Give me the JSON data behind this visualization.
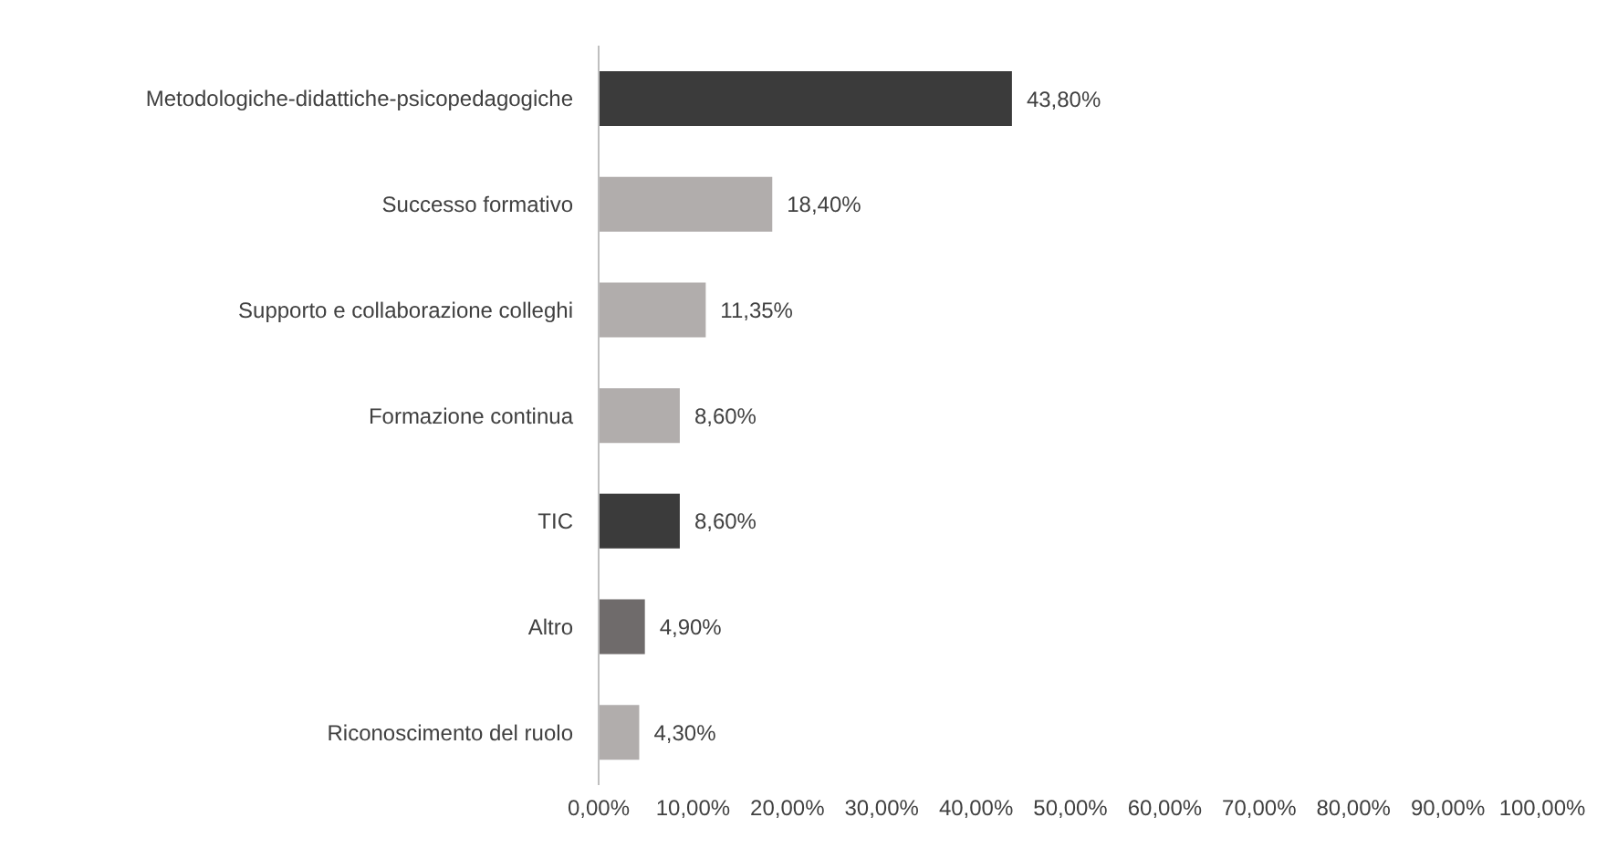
{
  "chart_data": {
    "type": "bar",
    "orientation": "horizontal",
    "categories": [
      "Metodologiche-didattiche-psicopedagogiche",
      "Successo formativo",
      "Supporto e collaborazione colleghi",
      "Formazione continua",
      "TIC",
      "Altro",
      "Riconoscimento del ruolo"
    ],
    "values": [
      43.8,
      18.4,
      11.35,
      8.6,
      8.6,
      4.9,
      4.3
    ],
    "colors": [
      "#3b3b3b",
      "#b1adac",
      "#b1adac",
      "#b1adac",
      "#3b3b3b",
      "#6f6b6b",
      "#b1adac"
    ],
    "value_labels": [
      "43,80%",
      "18,40%",
      "11,35%",
      "8,60%",
      "8,60%",
      "4,90%",
      "4,30%"
    ],
    "xlim": [
      0,
      100
    ],
    "xticks": [
      {
        "value": 0,
        "label": "0,00%"
      },
      {
        "value": 10,
        "label": "10,00%"
      },
      {
        "value": 20,
        "label": "20,00%"
      },
      {
        "value": 30,
        "label": "30,00%"
      },
      {
        "value": 40,
        "label": "40,00%"
      },
      {
        "value": 50,
        "label": "50,00%"
      },
      {
        "value": 60,
        "label": "60,00%"
      },
      {
        "value": 70,
        "label": "70,00%"
      },
      {
        "value": 80,
        "label": "80,00%"
      },
      {
        "value": 90,
        "label": "90,00%"
      },
      {
        "value": 100,
        "label": "100,00%"
      }
    ],
    "grid": false,
    "legend": false
  }
}
